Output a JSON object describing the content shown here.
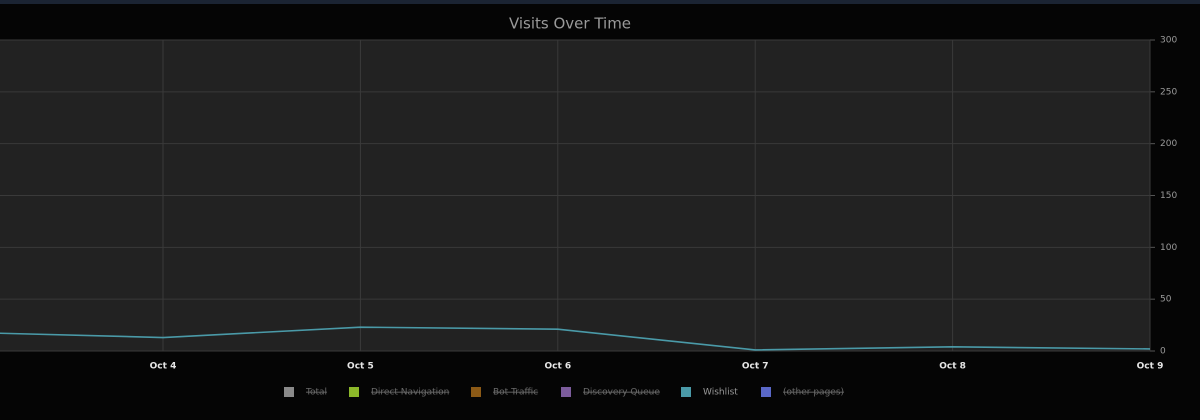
{
  "chart_data": {
    "type": "line",
    "title": "Visits Over Time",
    "categories": [
      null,
      "Oct 4",
      "Oct 5",
      "Oct 6",
      "Oct 7",
      "Oct 8",
      "Oct 9"
    ],
    "series": [
      {
        "name": "Total",
        "color": "#8a8a8a",
        "hidden": true
      },
      {
        "name": "Direct Navigation",
        "color": "#8cb82a",
        "hidden": true
      },
      {
        "name": "Bot Traffic",
        "color": "#8c5a16",
        "hidden": true
      },
      {
        "name": "Discovery Queue",
        "color": "#7c5c9c",
        "hidden": true
      },
      {
        "name": "Wishlist",
        "color": "#4a9aa8",
        "values": [
          18,
          13,
          23,
          21,
          1,
          4,
          2
        ]
      },
      {
        "name": "(other pages)",
        "color": "#5a68c8",
        "hidden": true
      }
    ],
    "ylim": [
      0,
      300
    ],
    "yticks": [
      0,
      50,
      100,
      150,
      200,
      250,
      300
    ],
    "grid": true
  }
}
